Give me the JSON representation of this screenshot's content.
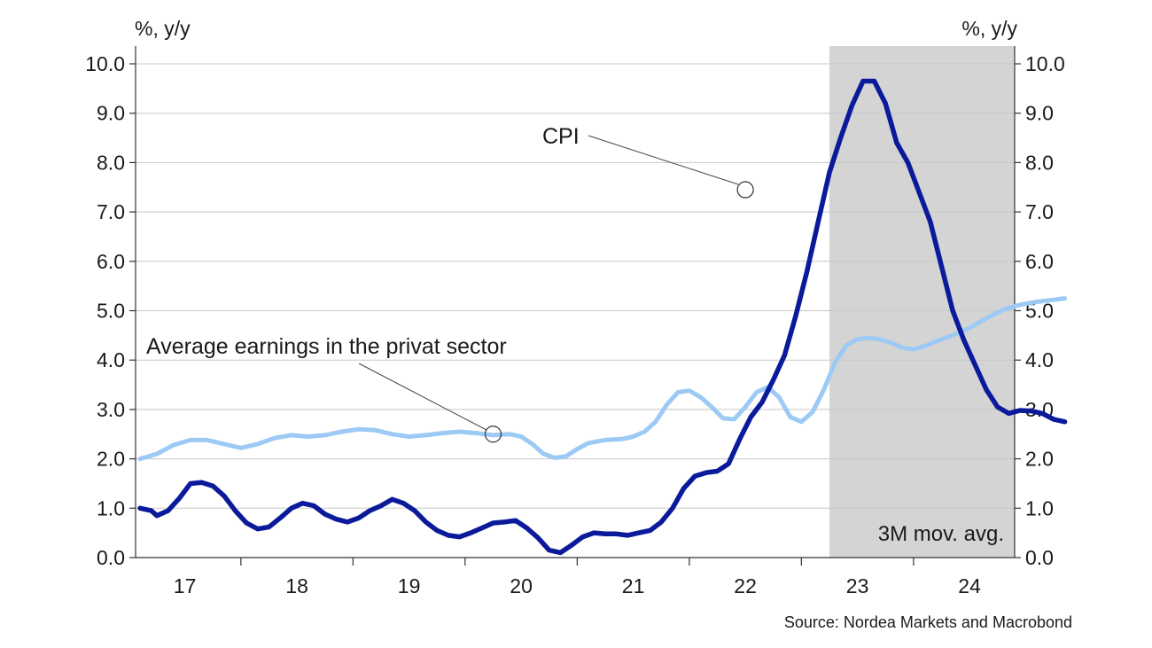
{
  "chart_data": {
    "type": "line",
    "left_unit": "%, y/y",
    "right_unit": "%, y/y",
    "ylim": [
      0,
      10
    ],
    "y_ticks": [
      "0.0",
      "1.0",
      "2.0",
      "3.0",
      "4.0",
      "5.0",
      "6.0",
      "7.0",
      "8.0",
      "9.0",
      "10.0"
    ],
    "x_range": [
      2016.6,
      2024.85
    ],
    "x_tick_labels": [
      {
        "label": "17",
        "x": 2017.0
      },
      {
        "label": "18",
        "x": 2018.0
      },
      {
        "label": "19",
        "x": 2019.0
      },
      {
        "label": "20",
        "x": 2020.0
      },
      {
        "label": "21",
        "x": 2021.0
      },
      {
        "label": "22",
        "x": 2022.0
      },
      {
        "label": "23",
        "x": 2023.0
      },
      {
        "label": "24",
        "x": 2024.0
      }
    ],
    "year_boundaries": [
      2016.5,
      2017.5,
      2018.5,
      2019.5,
      2020.5,
      2021.5,
      2022.5,
      2023.5,
      2024.5
    ],
    "grid": true,
    "shaded_region": {
      "from": 2022.75,
      "to": 2024.85,
      "label": "3M mov. avg.",
      "color": "#d4d4d4"
    },
    "source": "Source: Nordea Markets and Macrobond",
    "series": [
      {
        "color": "#0a1a9a",
        "annotation": {
          "label": "CPI",
          "x": 2022.0,
          "y": 7.45
        },
        "points": [
          [
            2016.6,
            1.0
          ],
          [
            2016.7,
            0.95
          ],
          [
            2016.75,
            0.85
          ],
          [
            2016.85,
            0.95
          ],
          [
            2016.95,
            1.2
          ],
          [
            2017.05,
            1.5
          ],
          [
            2017.15,
            1.52
          ],
          [
            2017.25,
            1.45
          ],
          [
            2017.35,
            1.25
          ],
          [
            2017.45,
            0.95
          ],
          [
            2017.55,
            0.7
          ],
          [
            2017.65,
            0.58
          ],
          [
            2017.75,
            0.62
          ],
          [
            2017.85,
            0.8
          ],
          [
            2017.95,
            1.0
          ],
          [
            2018.05,
            1.1
          ],
          [
            2018.15,
            1.05
          ],
          [
            2018.25,
            0.88
          ],
          [
            2018.35,
            0.78
          ],
          [
            2018.45,
            0.72
          ],
          [
            2018.55,
            0.8
          ],
          [
            2018.65,
            0.95
          ],
          [
            2018.75,
            1.05
          ],
          [
            2018.85,
            1.18
          ],
          [
            2018.95,
            1.1
          ],
          [
            2019.05,
            0.95
          ],
          [
            2019.15,
            0.72
          ],
          [
            2019.25,
            0.55
          ],
          [
            2019.35,
            0.45
          ],
          [
            2019.45,
            0.42
          ],
          [
            2019.55,
            0.5
          ],
          [
            2019.65,
            0.6
          ],
          [
            2019.75,
            0.7
          ],
          [
            2019.85,
            0.72
          ],
          [
            2019.95,
            0.75
          ],
          [
            2020.05,
            0.6
          ],
          [
            2020.15,
            0.4
          ],
          [
            2020.25,
            0.15
          ],
          [
            2020.35,
            0.1
          ],
          [
            2020.45,
            0.25
          ],
          [
            2020.55,
            0.42
          ],
          [
            2020.65,
            0.5
          ],
          [
            2020.75,
            0.48
          ],
          [
            2020.85,
            0.48
          ],
          [
            2020.95,
            0.45
          ],
          [
            2021.05,
            0.5
          ],
          [
            2021.15,
            0.55
          ],
          [
            2021.25,
            0.72
          ],
          [
            2021.35,
            1.0
          ],
          [
            2021.45,
            1.4
          ],
          [
            2021.55,
            1.65
          ],
          [
            2021.65,
            1.72
          ],
          [
            2021.75,
            1.75
          ],
          [
            2021.85,
            1.9
          ],
          [
            2021.95,
            2.4
          ],
          [
            2022.05,
            2.85
          ],
          [
            2022.15,
            3.15
          ],
          [
            2022.25,
            3.6
          ],
          [
            2022.35,
            4.1
          ],
          [
            2022.45,
            4.9
          ],
          [
            2022.55,
            5.8
          ],
          [
            2022.65,
            6.8
          ],
          [
            2022.75,
            7.8
          ],
          [
            2022.85,
            8.5
          ],
          [
            2022.95,
            9.15
          ],
          [
            2023.05,
            9.65
          ],
          [
            2023.15,
            9.65
          ],
          [
            2023.25,
            9.2
          ],
          [
            2023.35,
            8.4
          ],
          [
            2023.45,
            8.0
          ],
          [
            2023.55,
            7.4
          ],
          [
            2023.65,
            6.8
          ],
          [
            2023.75,
            5.9
          ],
          [
            2023.85,
            5.0
          ],
          [
            2023.95,
            4.4
          ],
          [
            2024.05,
            3.9
          ],
          [
            2024.15,
            3.4
          ],
          [
            2024.25,
            3.05
          ],
          [
            2024.35,
            2.92
          ],
          [
            2024.45,
            2.98
          ],
          [
            2024.55,
            2.97
          ],
          [
            2024.65,
            2.92
          ],
          [
            2024.75,
            2.8
          ],
          [
            2024.85,
            2.75
          ]
        ]
      },
      {
        "color": "#9ccaf5",
        "annotation": {
          "label": "Average earnings in the privat sector",
          "x": 2019.75,
          "y": 2.5
        },
        "points": [
          [
            2016.6,
            2.0
          ],
          [
            2016.75,
            2.1
          ],
          [
            2016.9,
            2.28
          ],
          [
            2017.05,
            2.38
          ],
          [
            2017.2,
            2.38
          ],
          [
            2017.35,
            2.3
          ],
          [
            2017.5,
            2.22
          ],
          [
            2017.65,
            2.3
          ],
          [
            2017.8,
            2.42
          ],
          [
            2017.95,
            2.48
          ],
          [
            2018.1,
            2.45
          ],
          [
            2018.25,
            2.48
          ],
          [
            2018.4,
            2.55
          ],
          [
            2018.55,
            2.6
          ],
          [
            2018.7,
            2.58
          ],
          [
            2018.85,
            2.5
          ],
          [
            2019.0,
            2.45
          ],
          [
            2019.15,
            2.48
          ],
          [
            2019.3,
            2.52
          ],
          [
            2019.45,
            2.55
          ],
          [
            2019.6,
            2.52
          ],
          [
            2019.75,
            2.48
          ],
          [
            2019.9,
            2.5
          ],
          [
            2020.0,
            2.45
          ],
          [
            2020.1,
            2.3
          ],
          [
            2020.2,
            2.1
          ],
          [
            2020.3,
            2.02
          ],
          [
            2020.4,
            2.05
          ],
          [
            2020.5,
            2.2
          ],
          [
            2020.6,
            2.32
          ],
          [
            2020.75,
            2.38
          ],
          [
            2020.9,
            2.4
          ],
          [
            2021.0,
            2.45
          ],
          [
            2021.1,
            2.55
          ],
          [
            2021.2,
            2.75
          ],
          [
            2021.3,
            3.1
          ],
          [
            2021.4,
            3.35
          ],
          [
            2021.5,
            3.38
          ],
          [
            2021.6,
            3.25
          ],
          [
            2021.7,
            3.05
          ],
          [
            2021.8,
            2.82
          ],
          [
            2021.9,
            2.8
          ],
          [
            2022.0,
            3.05
          ],
          [
            2022.1,
            3.35
          ],
          [
            2022.2,
            3.45
          ],
          [
            2022.3,
            3.25
          ],
          [
            2022.4,
            2.85
          ],
          [
            2022.5,
            2.75
          ],
          [
            2022.6,
            2.95
          ],
          [
            2022.7,
            3.4
          ],
          [
            2022.8,
            3.95
          ],
          [
            2022.9,
            4.3
          ],
          [
            2023.0,
            4.42
          ],
          [
            2023.1,
            4.45
          ],
          [
            2023.2,
            4.42
          ],
          [
            2023.3,
            4.35
          ],
          [
            2023.4,
            4.25
          ],
          [
            2023.5,
            4.22
          ],
          [
            2023.6,
            4.28
          ],
          [
            2023.7,
            4.38
          ],
          [
            2023.85,
            4.5
          ],
          [
            2024.0,
            4.65
          ],
          [
            2024.15,
            4.85
          ],
          [
            2024.3,
            5.02
          ],
          [
            2024.45,
            5.12
          ],
          [
            2024.6,
            5.18
          ],
          [
            2024.75,
            5.22
          ],
          [
            2024.85,
            5.25
          ]
        ]
      }
    ]
  }
}
